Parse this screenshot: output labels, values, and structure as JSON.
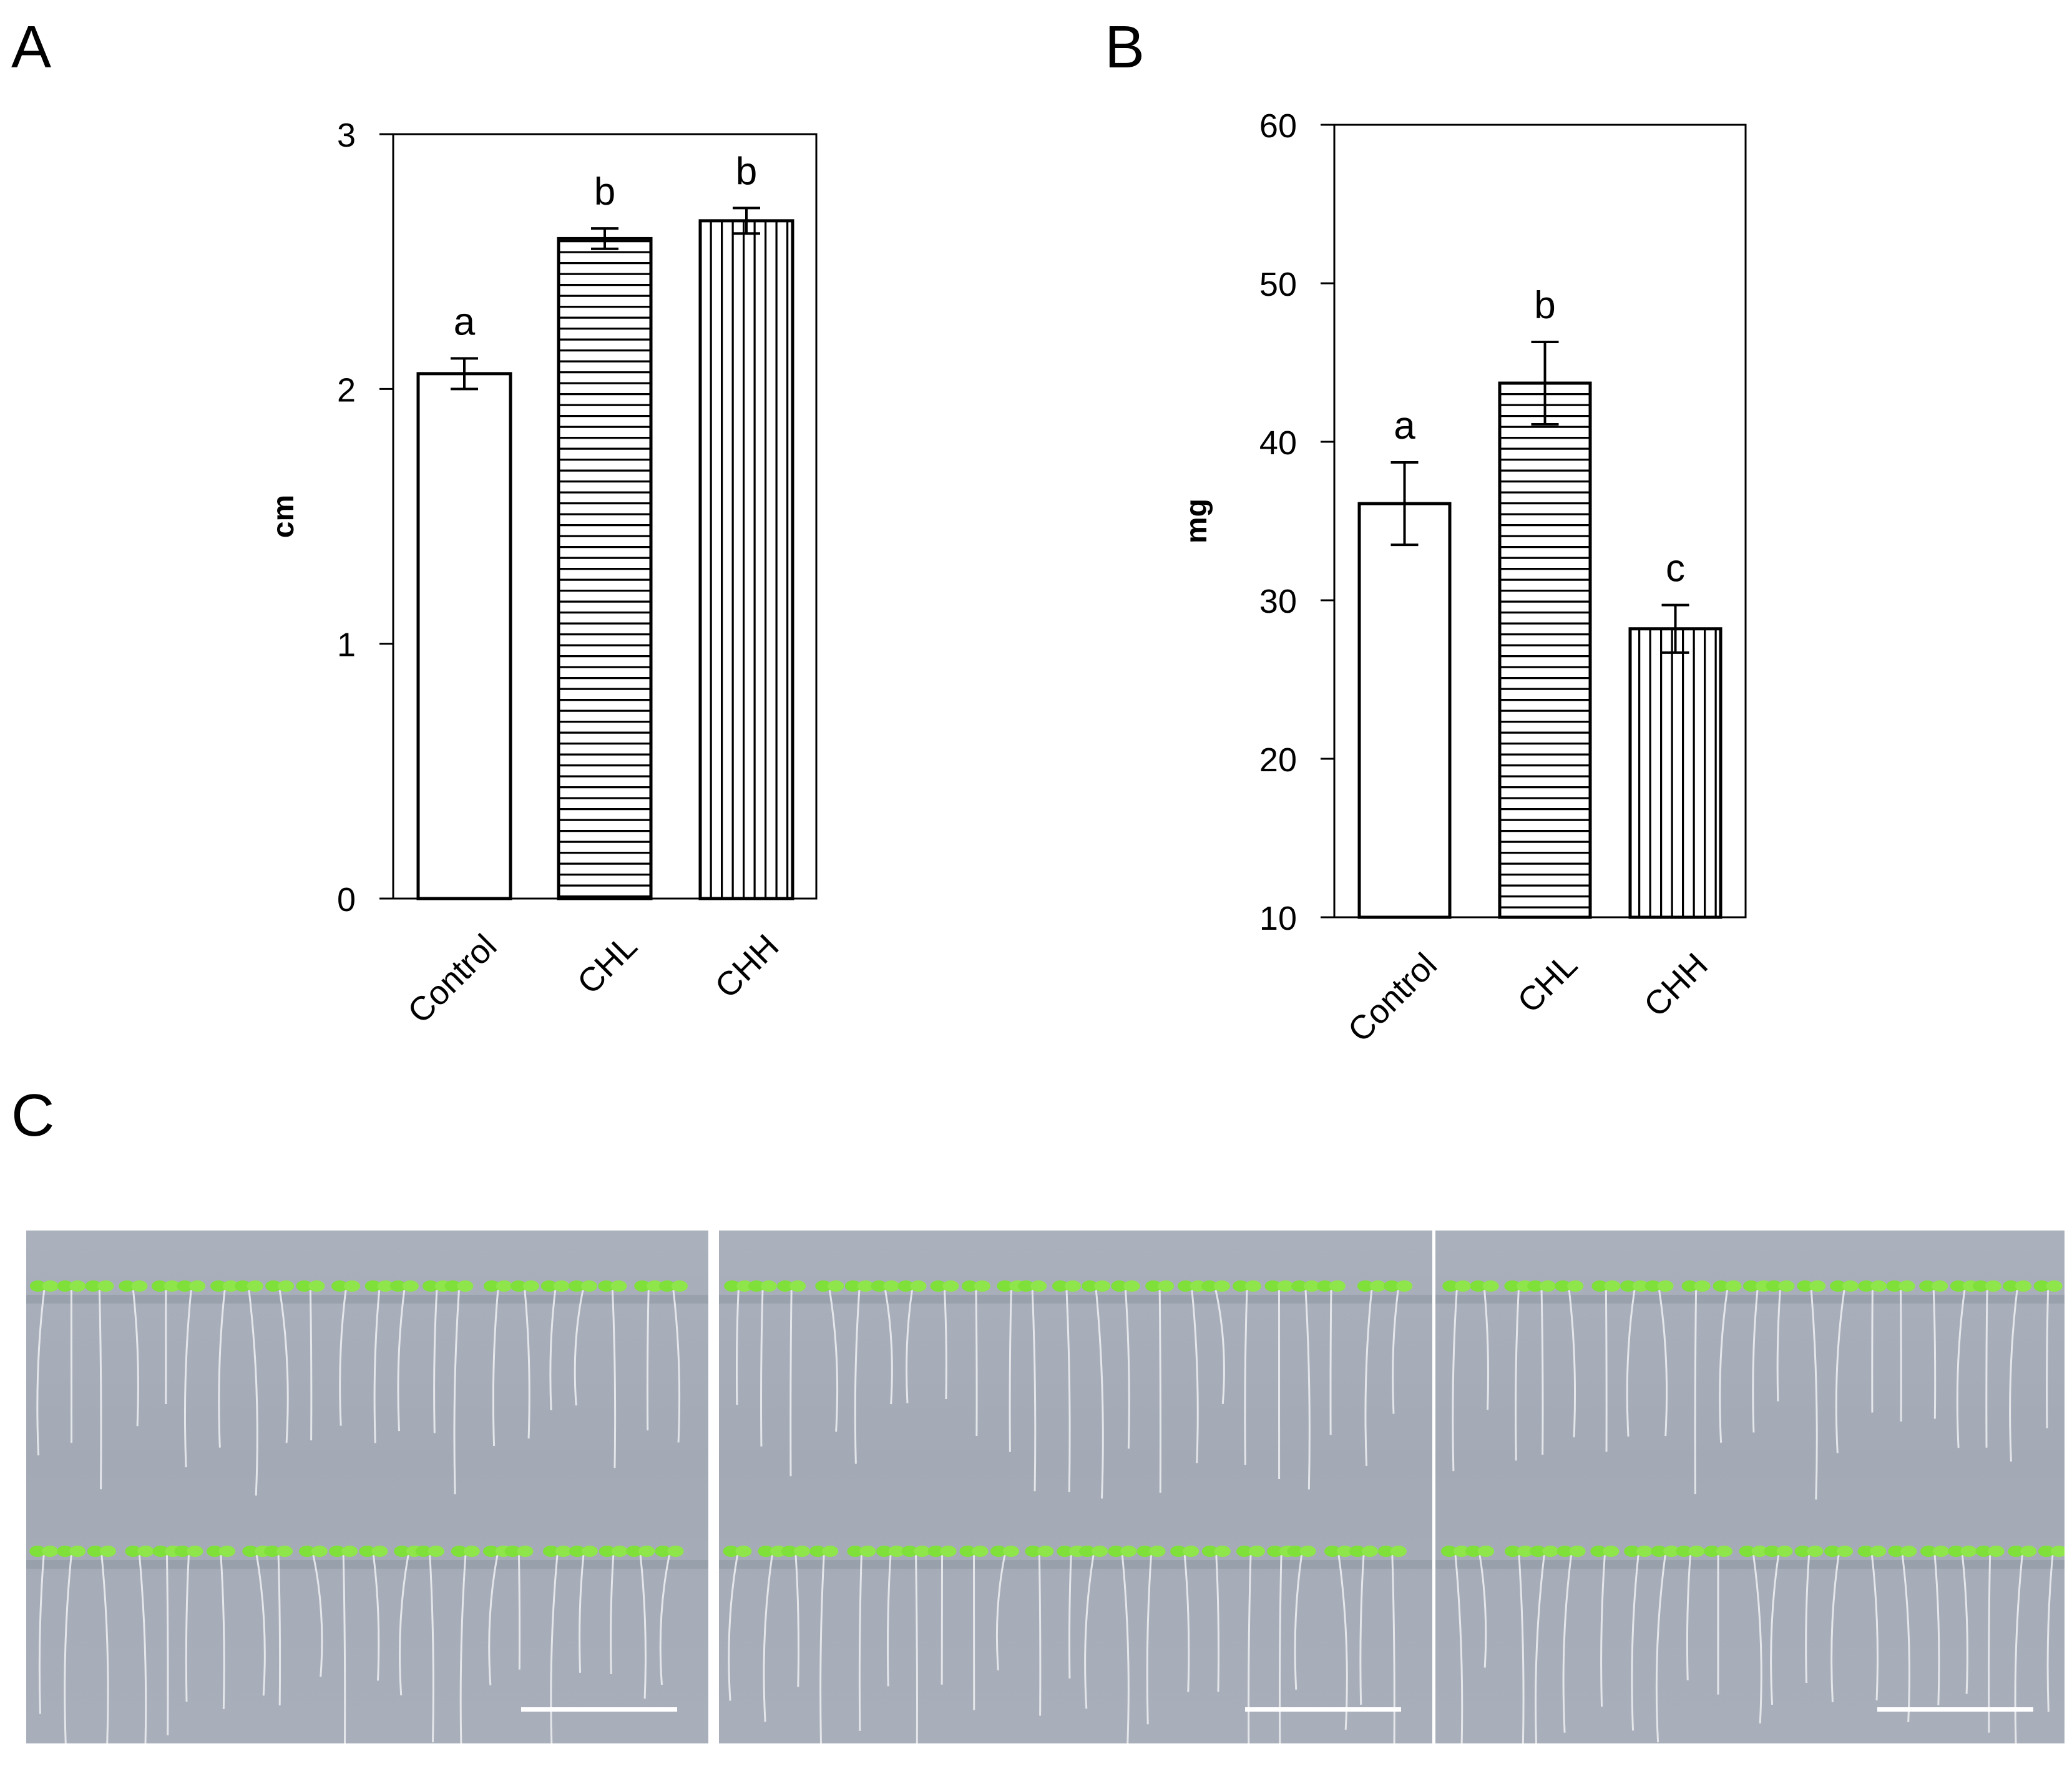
{
  "panels": {
    "a_label": "A",
    "b_label": "B",
    "c_label": "C"
  },
  "colors": {
    "axis": "#000000",
    "bar_fill": "#ffffff",
    "hatch": "#000000",
    "photo_bg": "#a7adb9",
    "seedling_green": "#7fe03a",
    "root": "#eef0f2",
    "scale_bar": "#ffffff"
  },
  "chart_data": [
    {
      "id": "A",
      "type": "bar",
      "title": "",
      "xlabel": "",
      "ylabel": "cm",
      "ylim": [
        0,
        3
      ],
      "yticks": [
        0,
        1,
        2,
        3
      ],
      "categories": [
        "Control",
        "CHL",
        "CHH"
      ],
      "values": [
        2.06,
        2.59,
        2.66
      ],
      "errors": [
        0.06,
        0.04,
        0.05
      ],
      "significance": [
        "a",
        "b",
        "b"
      ],
      "patterns": [
        "solid",
        "horizontal",
        "vertical"
      ],
      "grid": false,
      "legend": "none"
    },
    {
      "id": "B",
      "type": "bar",
      "title": "",
      "xlabel": "",
      "ylabel": "mg",
      "ylim": [
        10,
        60
      ],
      "yticks": [
        10,
        20,
        30,
        40,
        50,
        60
      ],
      "categories": [
        "Control",
        "CHL",
        "CHH"
      ],
      "values": [
        36.1,
        43.7,
        28.2
      ],
      "errors": [
        2.6,
        2.6,
        1.5
      ],
      "significance": [
        "a",
        "b",
        "c"
      ],
      "patterns": [
        "solid",
        "horizontal",
        "vertical"
      ],
      "grid": false,
      "legend": "none"
    }
  ],
  "photos": {
    "panel_c": [
      {
        "name": "control",
        "seedling_rows": 2,
        "scale_bar": true
      },
      {
        "name": "chl",
        "seedling_rows": 2,
        "scale_bar": true
      },
      {
        "name": "chh",
        "seedling_rows": 2,
        "scale_bar": true
      }
    ]
  }
}
